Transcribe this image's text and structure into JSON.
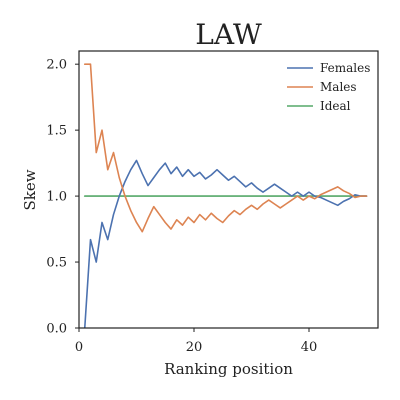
{
  "chart_data": {
    "type": "line",
    "title": "LAW",
    "xlabel": "Ranking position",
    "ylabel": "Skew",
    "xlim": [
      0,
      52
    ],
    "ylim": [
      0,
      2.1
    ],
    "xticks": [
      0,
      20,
      40
    ],
    "xtick_labels": [
      "0",
      "20",
      "40"
    ],
    "yticks": [
      0.0,
      0.5,
      1.0,
      1.5,
      2.0
    ],
    "ytick_labels": [
      "0.0",
      "0.5",
      "1.0",
      "1.5",
      "2.0"
    ],
    "grid": false,
    "legend_position": "top-right",
    "series": [
      {
        "name": "Females",
        "color": "#4c72b0",
        "x": [
          1,
          2,
          3,
          4,
          5,
          6,
          7,
          8,
          9,
          10,
          11,
          12,
          13,
          14,
          15,
          16,
          17,
          18,
          19,
          20,
          21,
          22,
          23,
          24,
          25,
          26,
          27,
          28,
          29,
          30,
          31,
          32,
          33,
          34,
          35,
          36,
          37,
          38,
          39,
          40,
          41,
          42,
          43,
          44,
          45,
          46,
          47,
          48,
          49,
          50
        ],
        "y": [
          0.0,
          0.67,
          0.5,
          0.8,
          0.67,
          0.86,
          1.0,
          1.11,
          1.2,
          1.27,
          1.17,
          1.08,
          1.14,
          1.2,
          1.25,
          1.17,
          1.22,
          1.15,
          1.2,
          1.15,
          1.18,
          1.13,
          1.16,
          1.2,
          1.16,
          1.12,
          1.15,
          1.11,
          1.07,
          1.1,
          1.06,
          1.03,
          1.06,
          1.09,
          1.06,
          1.03,
          1.0,
          1.03,
          1.0,
          1.03,
          1.0,
          0.99,
          0.97,
          0.95,
          0.93,
          0.96,
          0.98,
          1.01,
          1.0,
          1.0
        ]
      },
      {
        "name": "Males",
        "color": "#dd8452",
        "x": [
          1,
          2,
          3,
          4,
          5,
          6,
          7,
          8,
          9,
          10,
          11,
          12,
          13,
          14,
          15,
          16,
          17,
          18,
          19,
          20,
          21,
          22,
          23,
          24,
          25,
          26,
          27,
          28,
          29,
          30,
          31,
          32,
          33,
          34,
          35,
          36,
          37,
          38,
          39,
          40,
          41,
          42,
          43,
          44,
          45,
          46,
          47,
          48,
          49,
          50
        ],
        "y": [
          2.0,
          2.0,
          1.33,
          1.5,
          1.2,
          1.33,
          1.14,
          1.0,
          0.89,
          0.8,
          0.73,
          0.83,
          0.92,
          0.86,
          0.8,
          0.75,
          0.82,
          0.78,
          0.84,
          0.8,
          0.86,
          0.82,
          0.87,
          0.83,
          0.8,
          0.85,
          0.89,
          0.86,
          0.9,
          0.93,
          0.9,
          0.94,
          0.97,
          0.94,
          0.91,
          0.94,
          0.97,
          1.0,
          0.97,
          1.0,
          0.98,
          1.01,
          1.03,
          1.05,
          1.07,
          1.04,
          1.02,
          0.99,
          1.0,
          1.0
        ]
      },
      {
        "name": "Ideal",
        "color": "#55a868",
        "x": [
          1,
          50
        ],
        "y": [
          1.0,
          1.0
        ]
      }
    ]
  }
}
